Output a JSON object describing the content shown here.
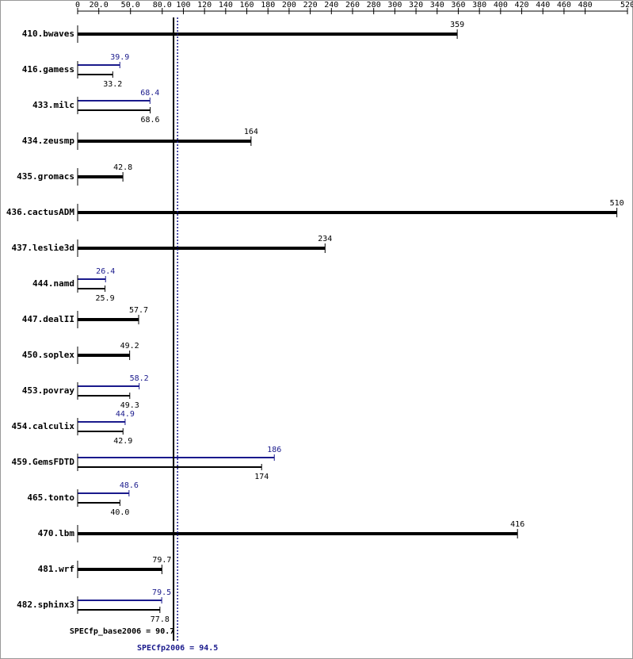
{
  "chart_data": {
    "type": "bar",
    "orientation": "horizontal",
    "categories": [
      "410.bwaves",
      "416.gamess",
      "433.milc",
      "434.zeusmp",
      "435.gromacs",
      "436.cactusADM",
      "437.leslie3d",
      "444.namd",
      "447.dealII",
      "450.soplex",
      "453.povray",
      "454.calculix",
      "459.GemsFDTD",
      "465.tonto",
      "470.lbm",
      "481.wrf",
      "482.sphinx3"
    ],
    "base": {
      "color": "#000000",
      "values": [
        359,
        33.2,
        68.6,
        164,
        42.8,
        510,
        234,
        25.9,
        57.7,
        49.2,
        49.3,
        42.9,
        174,
        40.0,
        416,
        79.7,
        77.8
      ],
      "value_labels": [
        "359",
        "33.2",
        "68.6",
        "164",
        "42.8",
        "510",
        "234",
        "25.9",
        "57.7",
        "49.2",
        "49.3",
        "42.9",
        "174",
        "40.0",
        "416",
        "79.7",
        "77.8"
      ]
    },
    "peak": {
      "color": "#1a1a8c",
      "values": [
        null,
        39.9,
        68.4,
        null,
        null,
        null,
        null,
        26.4,
        null,
        null,
        58.2,
        44.9,
        186,
        48.6,
        null,
        null,
        79.5
      ]
    },
    "xlim": [
      0,
      520
    ],
    "xticks": [
      0,
      {
        "value": 20,
        "label": "20.0"
      },
      {
        "value": 50,
        "label": "50.0"
      },
      {
        "value": 80,
        "label": "80.0"
      },
      100,
      120,
      140,
      160,
      180,
      200,
      220,
      240,
      260,
      280,
      300,
      320,
      340,
      360,
      380,
      400,
      420,
      440,
      460,
      480,
      520
    ],
    "reference_lines": [
      {
        "label": "SPECfp_base2006 = 90.7",
        "value": 90.7,
        "color": "#000000"
      },
      {
        "label": "SPECfp2006 = 94.5",
        "value": 94.5,
        "color": "#1a1a8c"
      }
    ]
  }
}
